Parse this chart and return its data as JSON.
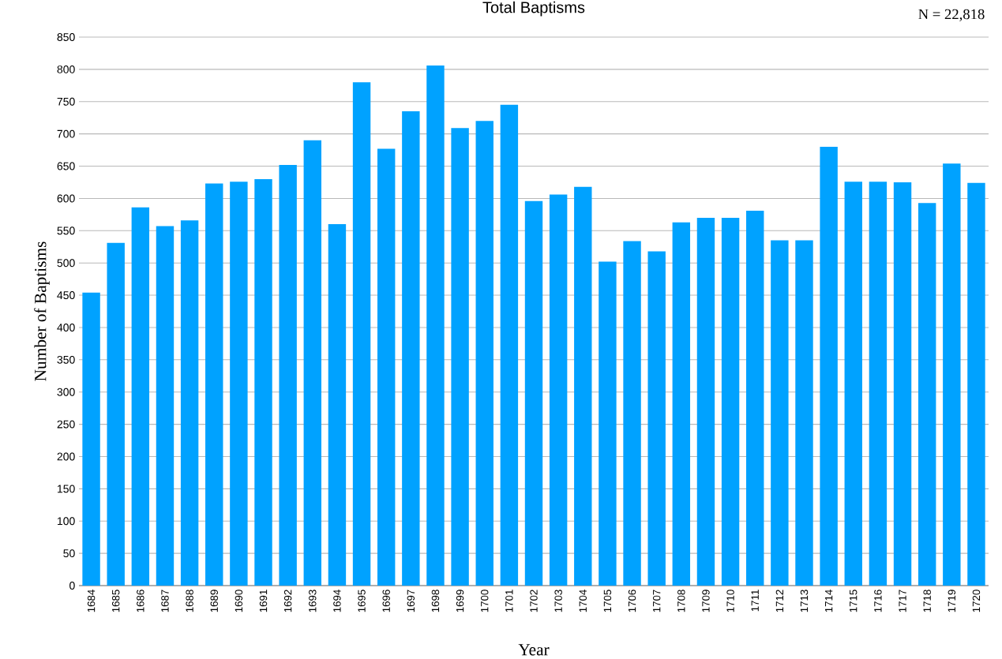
{
  "chart_data": {
    "type": "bar",
    "title": "Total Baptisms",
    "xlabel": "Year",
    "ylabel": "Number of Baptisms",
    "annotations": [
      "N = 22,818"
    ],
    "categories": [
      "1684",
      "1685",
      "1686",
      "1687",
      "1688",
      "1689",
      "1690",
      "1691",
      "1692",
      "1693",
      "1694",
      "1695",
      "1696",
      "1697",
      "1698",
      "1699",
      "1700",
      "1701",
      "1702",
      "1703",
      "1704",
      "1705",
      "1706",
      "1707",
      "1708",
      "1709",
      "1710",
      "1711",
      "1712",
      "1713",
      "1714",
      "1715",
      "1716",
      "1717",
      "1718",
      "1719",
      "1720"
    ],
    "values": [
      454,
      531,
      586,
      557,
      566,
      623,
      626,
      630,
      652,
      690,
      560,
      780,
      677,
      735,
      806,
      709,
      720,
      745,
      596,
      606,
      618,
      502,
      534,
      518,
      563,
      570,
      570,
      581,
      535,
      535,
      680,
      626,
      626,
      625,
      593,
      654,
      624
    ],
    "color": "#00a2ff",
    "ylim": [
      0,
      850
    ],
    "yticks": [
      0,
      50,
      100,
      150,
      200,
      250,
      300,
      350,
      400,
      450,
      500,
      550,
      600,
      650,
      700,
      750,
      800,
      850
    ],
    "grid": "y"
  }
}
